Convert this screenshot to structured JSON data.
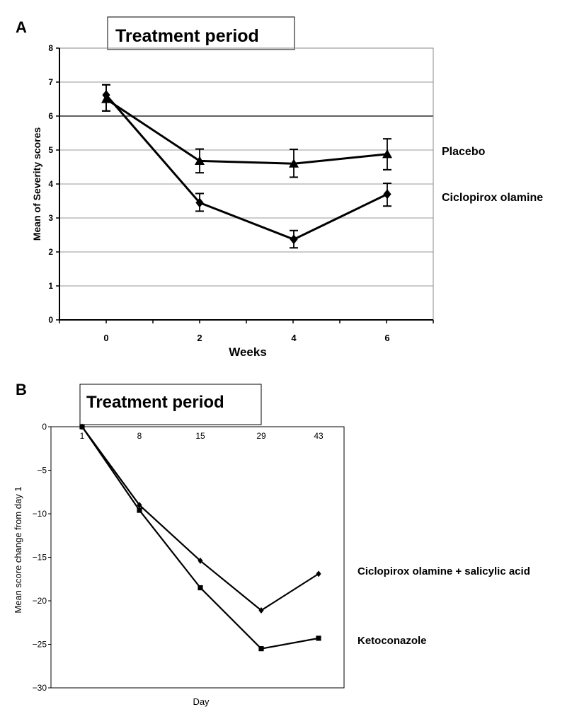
{
  "panels": [
    {
      "letter": "A",
      "banner": "Treatment period"
    },
    {
      "letter": "B",
      "banner": "Treatment period"
    }
  ],
  "chart_data": [
    {
      "type": "line",
      "xlabel": "Weeks",
      "ylabel": "Mean of Severity scores",
      "x": [
        0,
        2,
        4,
        6
      ],
      "xticks": [
        "0",
        "2",
        "4",
        "6"
      ],
      "yticks": [
        "0",
        "1",
        "2",
        "3",
        "4",
        "5",
        "6",
        "7",
        "8"
      ],
      "ylim": [
        0,
        8
      ],
      "grid": "horizontal",
      "series": [
        {
          "name": "Placebo",
          "marker": "triangle",
          "values": [
            6.5,
            4.68,
            4.6,
            4.88
          ],
          "err_low": [
            6.15,
            4.33,
            4.2,
            4.42
          ],
          "err_high": [
            6.92,
            5.03,
            5.02,
            5.33
          ]
        },
        {
          "name": "Ciclopirox olamine",
          "marker": "diamond",
          "values": [
            6.62,
            3.45,
            2.37,
            3.7
          ],
          "err_low": [
            6.15,
            3.2,
            2.12,
            3.35
          ],
          "err_high": [
            6.92,
            3.72,
            2.63,
            4.02
          ]
        }
      ]
    },
    {
      "type": "line",
      "xlabel": "Day",
      "ylabel": "Mean score change from day 1",
      "categories": [
        "1",
        "8",
        "15",
        "29",
        "43"
      ],
      "yticks": [
        "0",
        "−5",
        "−10",
        "−15",
        "−20",
        "−25",
        "−30"
      ],
      "ylim": [
        -30,
        0
      ],
      "grid": "none",
      "series": [
        {
          "name": "Ciclopirox olamine + salicylic acid",
          "marker": "diamond",
          "values": [
            0,
            -9,
            -15.4,
            -21.1,
            -16.9
          ]
        },
        {
          "name": "Ketoconazole",
          "marker": "square",
          "values": [
            0,
            -9.6,
            -18.5,
            -25.5,
            -24.3
          ]
        }
      ]
    }
  ]
}
